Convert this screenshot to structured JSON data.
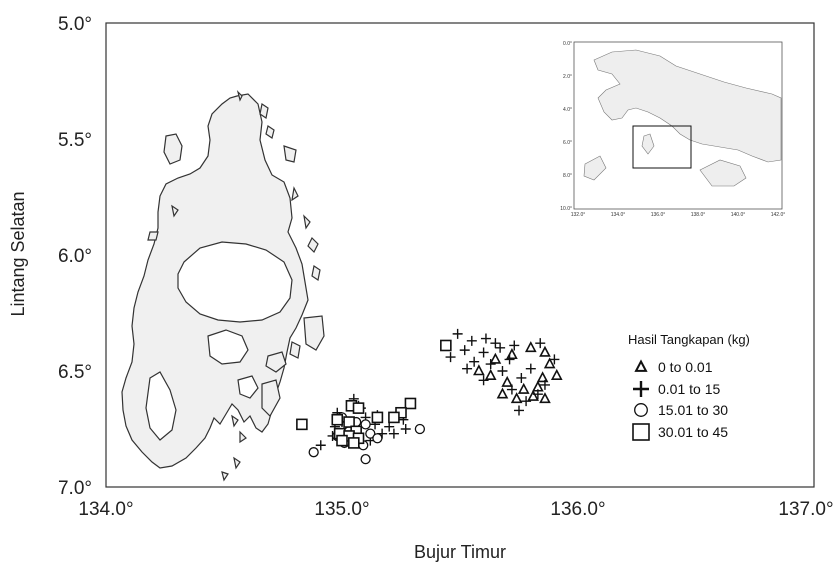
{
  "chart_data": {
    "type": "scatter",
    "title": "",
    "xlabel": "Bujur Timur",
    "ylabel": "Lintang Selatan",
    "xlim": [
      134.0,
      137.0
    ],
    "ylim": [
      5.0,
      7.0
    ],
    "y_inverted": true,
    "x_ticks": [
      "134.0°",
      "135.0°",
      "136.0°",
      "137.0°"
    ],
    "y_ticks": [
      "5.0°",
      "5.5°",
      "6.0°",
      "6.5°",
      "7.0°"
    ],
    "grid": false,
    "legend": {
      "title": "Hasil Tangkapan (kg)",
      "placement": "right",
      "entries": [
        "0  to  0.01",
        "0.01  to  15",
        "15.01  to  30",
        "30.01  to  45"
      ]
    },
    "series": [
      {
        "name": "0  to  0.01",
        "marker": "triangle",
        "points": [
          [
            135.65,
            6.45
          ],
          [
            135.72,
            6.43
          ],
          [
            135.8,
            6.4
          ],
          [
            135.86,
            6.42
          ],
          [
            135.88,
            6.47
          ],
          [
            135.58,
            6.5
          ],
          [
            135.63,
            6.52
          ],
          [
            135.7,
            6.55
          ],
          [
            135.85,
            6.53
          ],
          [
            135.91,
            6.52
          ],
          [
            135.77,
            6.58
          ],
          [
            135.83,
            6.57
          ],
          [
            135.68,
            6.6
          ],
          [
            135.74,
            6.62
          ],
          [
            135.81,
            6.61
          ],
          [
            135.86,
            6.62
          ]
        ]
      },
      {
        "name": "0.01  to  15",
        "marker": "plus",
        "points": [
          [
            135.49,
            6.34
          ],
          [
            135.55,
            6.37
          ],
          [
            135.61,
            6.36
          ],
          [
            135.65,
            6.38
          ],
          [
            135.52,
            6.41
          ],
          [
            135.6,
            6.42
          ],
          [
            135.67,
            6.4
          ],
          [
            135.73,
            6.39
          ],
          [
            135.84,
            6.38
          ],
          [
            135.46,
            6.44
          ],
          [
            135.56,
            6.46
          ],
          [
            135.71,
            6.45
          ],
          [
            135.9,
            6.45
          ],
          [
            135.53,
            6.49
          ],
          [
            135.63,
            6.47
          ],
          [
            135.68,
            6.5
          ],
          [
            135.8,
            6.49
          ],
          [
            135.6,
            6.54
          ],
          [
            135.76,
            6.53
          ],
          [
            135.86,
            6.56
          ],
          [
            135.72,
            6.58
          ],
          [
            135.78,
            6.63
          ],
          [
            135.83,
            6.6
          ],
          [
            135.75,
            6.67
          ],
          [
            135.05,
            6.62
          ],
          [
            134.98,
            6.68
          ],
          [
            135.08,
            6.66
          ],
          [
            135.1,
            6.7
          ],
          [
            135.0,
            6.72
          ],
          [
            135.14,
            6.73
          ],
          [
            135.2,
            6.74
          ],
          [
            135.26,
            6.71
          ],
          [
            135.27,
            6.75
          ],
          [
            134.97,
            6.74
          ],
          [
            135.03,
            6.75
          ],
          [
            135.17,
            6.77
          ],
          [
            135.22,
            6.77
          ],
          [
            134.96,
            6.78
          ],
          [
            135.12,
            6.8
          ],
          [
            134.91,
            6.82
          ],
          [
            135.05,
            6.79
          ],
          [
            135.07,
            6.65
          ],
          [
            135.15,
            6.69
          ],
          [
            135.24,
            6.68
          ]
        ]
      },
      {
        "name": "15.01  to  30",
        "marker": "circle",
        "points": [
          [
            135.0,
            6.7
          ],
          [
            135.06,
            6.72
          ],
          [
            135.1,
            6.73
          ],
          [
            135.03,
            6.76
          ],
          [
            135.12,
            6.77
          ],
          [
            134.98,
            6.78
          ],
          [
            135.07,
            6.79
          ],
          [
            135.15,
            6.79
          ],
          [
            135.01,
            6.81
          ],
          [
            135.09,
            6.82
          ],
          [
            134.88,
            6.85
          ],
          [
            135.1,
            6.88
          ],
          [
            135.33,
            6.75
          ]
        ]
      },
      {
        "name": "30.01  to  45",
        "marker": "square",
        "points": [
          [
            135.44,
            6.39
          ],
          [
            135.29,
            6.64
          ],
          [
            135.25,
            6.68
          ],
          [
            135.22,
            6.7
          ],
          [
            135.04,
            6.65
          ],
          [
            135.07,
            6.66
          ],
          [
            135.15,
            6.7
          ],
          [
            134.98,
            6.71
          ],
          [
            135.03,
            6.72
          ],
          [
            135.06,
            6.76
          ],
          [
            134.99,
            6.77
          ],
          [
            135.03,
            6.78
          ],
          [
            135.07,
            6.79
          ],
          [
            135.0,
            6.8
          ],
          [
            135.05,
            6.81
          ],
          [
            134.83,
            6.73
          ]
        ]
      }
    ],
    "inset": {
      "x_ticks": [
        "132.0°",
        "134.0°",
        "136.0°",
        "138.0°",
        "140.0°",
        "142.0°"
      ],
      "y_ticks": [
        "0.0°",
        "2.0°",
        "4.0°",
        "6.0°",
        "8.0°",
        "10.0°"
      ]
    }
  },
  "style": {
    "land_fill": "#f0f0f0",
    "outline": "#333333",
    "marker_color": "#111111"
  }
}
